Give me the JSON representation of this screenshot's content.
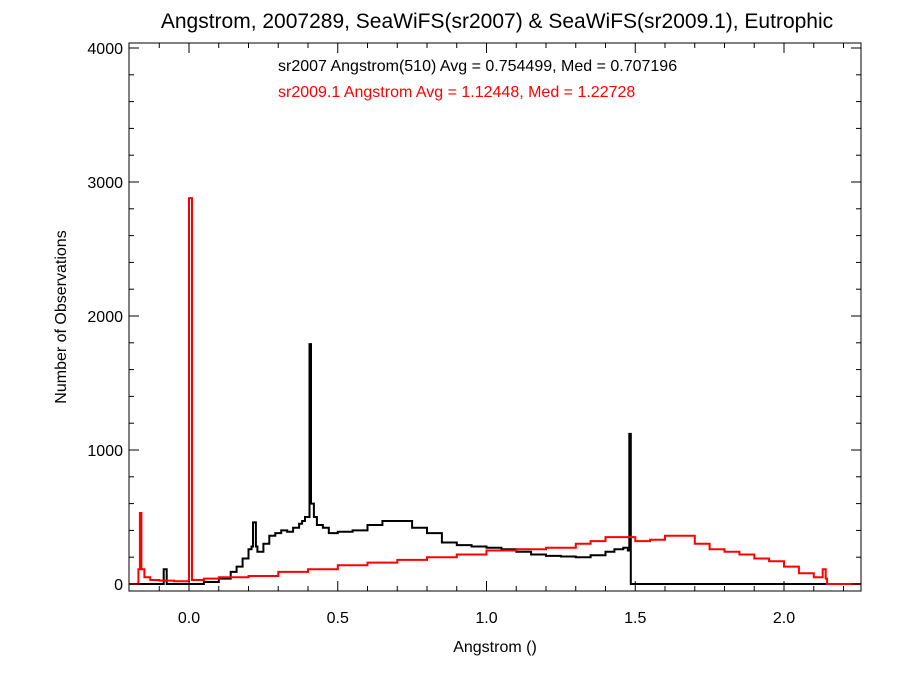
{
  "chart_data": {
    "type": "line",
    "title": "Angstrom, 2007289, SeaWiFS(sr2007) & SeaWiFS(sr2009.1), Eutrophic",
    "xlabel": "Angstrom ()",
    "ylabel": "Number of Observations",
    "xlim": [
      -0.2,
      2.28
    ],
    "ylim": [
      0,
      4000
    ],
    "x_ticks": [
      0.0,
      0.5,
      1.0,
      1.5,
      2.0
    ],
    "x_tick_labels": [
      "0.0",
      "0.5",
      "1.0",
      "1.5",
      "2.0"
    ],
    "y_ticks": [
      0,
      1000,
      2000,
      3000,
      4000
    ],
    "y_tick_labels": [
      "0",
      "1000",
      "2000",
      "3000",
      "4000"
    ],
    "grid": false,
    "step_style": "histogram",
    "annotations": [
      {
        "text": "sr2007 Angstrom(510) Avg = 0.754499, Med = 0.707196",
        "color": "#000000"
      },
      {
        "text": "sr2009.1 Angstrom Avg = 1.12448, Med = 1.22728",
        "color": "#ff0000"
      }
    ],
    "series": [
      {
        "name": "sr2007",
        "color": "#000000",
        "x": [
          -0.2,
          -0.09,
          -0.085,
          -0.075,
          0.0,
          0.05,
          0.1,
          0.14,
          0.16,
          0.18,
          0.2,
          0.21,
          0.215,
          0.225,
          0.23,
          0.25,
          0.27,
          0.29,
          0.31,
          0.33,
          0.35,
          0.37,
          0.38,
          0.39,
          0.4,
          0.405,
          0.41,
          0.42,
          0.43,
          0.45,
          0.47,
          0.5,
          0.55,
          0.6,
          0.65,
          0.7,
          0.75,
          0.8,
          0.85,
          0.9,
          0.95,
          1.0,
          1.05,
          1.1,
          1.15,
          1.2,
          1.25,
          1.3,
          1.35,
          1.4,
          1.43,
          1.46,
          1.475,
          1.48,
          1.485,
          1.49,
          2.28
        ],
        "y": [
          0,
          0,
          110,
          0,
          0,
          15,
          40,
          90,
          130,
          190,
          260,
          280,
          460,
          280,
          240,
          300,
          360,
          380,
          400,
          390,
          420,
          450,
          470,
          500,
          500,
          1790,
          600,
          500,
          440,
          420,
          380,
          390,
          400,
          440,
          470,
          470,
          420,
          380,
          310,
          290,
          280,
          270,
          260,
          240,
          220,
          210,
          205,
          200,
          215,
          240,
          260,
          270,
          250,
          1120,
          0,
          0,
          0
        ]
      },
      {
        "name": "sr2009.1",
        "color": "#ff0000",
        "x": [
          -0.2,
          -0.18,
          -0.17,
          -0.165,
          -0.16,
          -0.15,
          -0.13,
          -0.1,
          -0.05,
          -0.01,
          0.0,
          0.01,
          0.05,
          0.1,
          0.2,
          0.3,
          0.4,
          0.5,
          0.6,
          0.7,
          0.8,
          0.9,
          1.0,
          1.1,
          1.2,
          1.3,
          1.35,
          1.4,
          1.45,
          1.5,
          1.55,
          1.6,
          1.65,
          1.7,
          1.75,
          1.8,
          1.85,
          1.9,
          1.95,
          2.0,
          2.05,
          2.1,
          2.13,
          2.14,
          2.145,
          2.17,
          2.28
        ],
        "y": [
          0,
          0,
          110,
          530,
          110,
          50,
          30,
          25,
          20,
          20,
          2880,
          30,
          40,
          50,
          60,
          90,
          110,
          140,
          160,
          180,
          200,
          220,
          250,
          260,
          270,
          300,
          320,
          350,
          350,
          320,
          330,
          360,
          360,
          300,
          260,
          240,
          220,
          190,
          170,
          130,
          80,
          50,
          110,
          40,
          0,
          0,
          0
        ]
      }
    ]
  }
}
